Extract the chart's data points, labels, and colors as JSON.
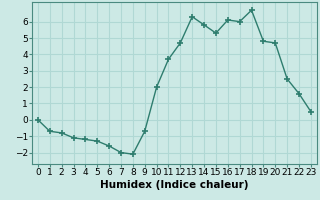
{
  "x": [
    0,
    1,
    2,
    3,
    4,
    5,
    6,
    7,
    8,
    9,
    10,
    11,
    12,
    13,
    14,
    15,
    16,
    17,
    18,
    19,
    20,
    21,
    22,
    23
  ],
  "y": [
    0.0,
    -0.7,
    -0.8,
    -1.1,
    -1.2,
    -1.3,
    -1.6,
    -2.0,
    -2.1,
    -0.7,
    2.0,
    3.7,
    4.7,
    6.3,
    5.8,
    5.3,
    6.1,
    6.0,
    6.7,
    4.8,
    4.7,
    2.5,
    1.6,
    0.5
  ],
  "line_color": "#2e7d6e",
  "marker": "+",
  "marker_size": 4,
  "marker_lw": 1.2,
  "xlabel": "Humidex (Indice chaleur)",
  "xlim": [
    -0.5,
    23.5
  ],
  "ylim": [
    -2.7,
    7.2
  ],
  "yticks": [
    -2,
    -1,
    0,
    1,
    2,
    3,
    4,
    5,
    6
  ],
  "xtick_labels": [
    "0",
    "1",
    "2",
    "3",
    "4",
    "5",
    "6",
    "7",
    "8",
    "9",
    "10",
    "11",
    "12",
    "13",
    "14",
    "15",
    "16",
    "17",
    "18",
    "19",
    "20",
    "21",
    "22",
    "23"
  ],
  "bg_color": "#cce9e5",
  "grid_color": "#b0d8d4",
  "tick_fontsize": 6.5,
  "xlabel_fontsize": 7.5,
  "linewidth": 1.0
}
